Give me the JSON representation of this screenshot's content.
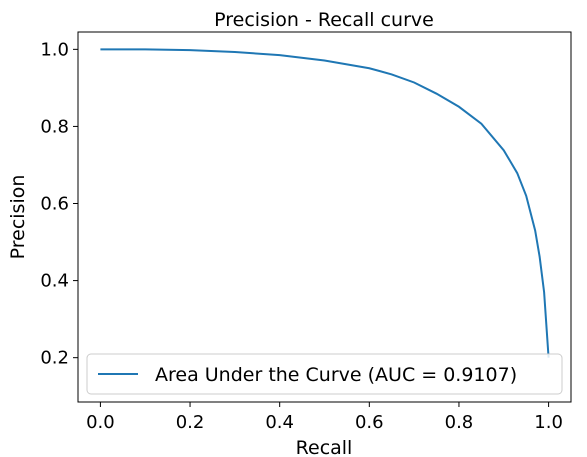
{
  "chart_data": {
    "type": "line",
    "title": "Precision - Recall curve",
    "xlabel": "Recall",
    "ylabel": "Precision",
    "xlim": [
      -0.05,
      1.05
    ],
    "ylim": [
      0.085,
      1.045
    ],
    "xticks": [
      0.0,
      0.2,
      0.4,
      0.6,
      0.8,
      1.0
    ],
    "xtick_labels": [
      "0.0",
      "0.2",
      "0.4",
      "0.6",
      "0.8",
      "1.0"
    ],
    "yticks": [
      0.2,
      0.4,
      0.6,
      0.8,
      1.0
    ],
    "ytick_labels": [
      "0.2",
      "0.4",
      "0.6",
      "0.8",
      "1.0"
    ],
    "grid": false,
    "legend_position": "lower center",
    "colors": {
      "series": "#1f77b4",
      "legend_border": "#cccccc"
    },
    "series": [
      {
        "name": "Area Under the Curve (AUC = 0.9107)",
        "x": [
          0.0,
          0.1,
          0.2,
          0.3,
          0.4,
          0.5,
          0.6,
          0.65,
          0.7,
          0.75,
          0.8,
          0.85,
          0.9,
          0.93,
          0.95,
          0.97,
          0.98,
          0.99,
          1.0
        ],
        "y": [
          1.0,
          1.0,
          0.998,
          0.993,
          0.985,
          0.971,
          0.951,
          0.935,
          0.914,
          0.885,
          0.851,
          0.807,
          0.738,
          0.679,
          0.62,
          0.53,
          0.462,
          0.37,
          0.2
        ]
      }
    ]
  }
}
